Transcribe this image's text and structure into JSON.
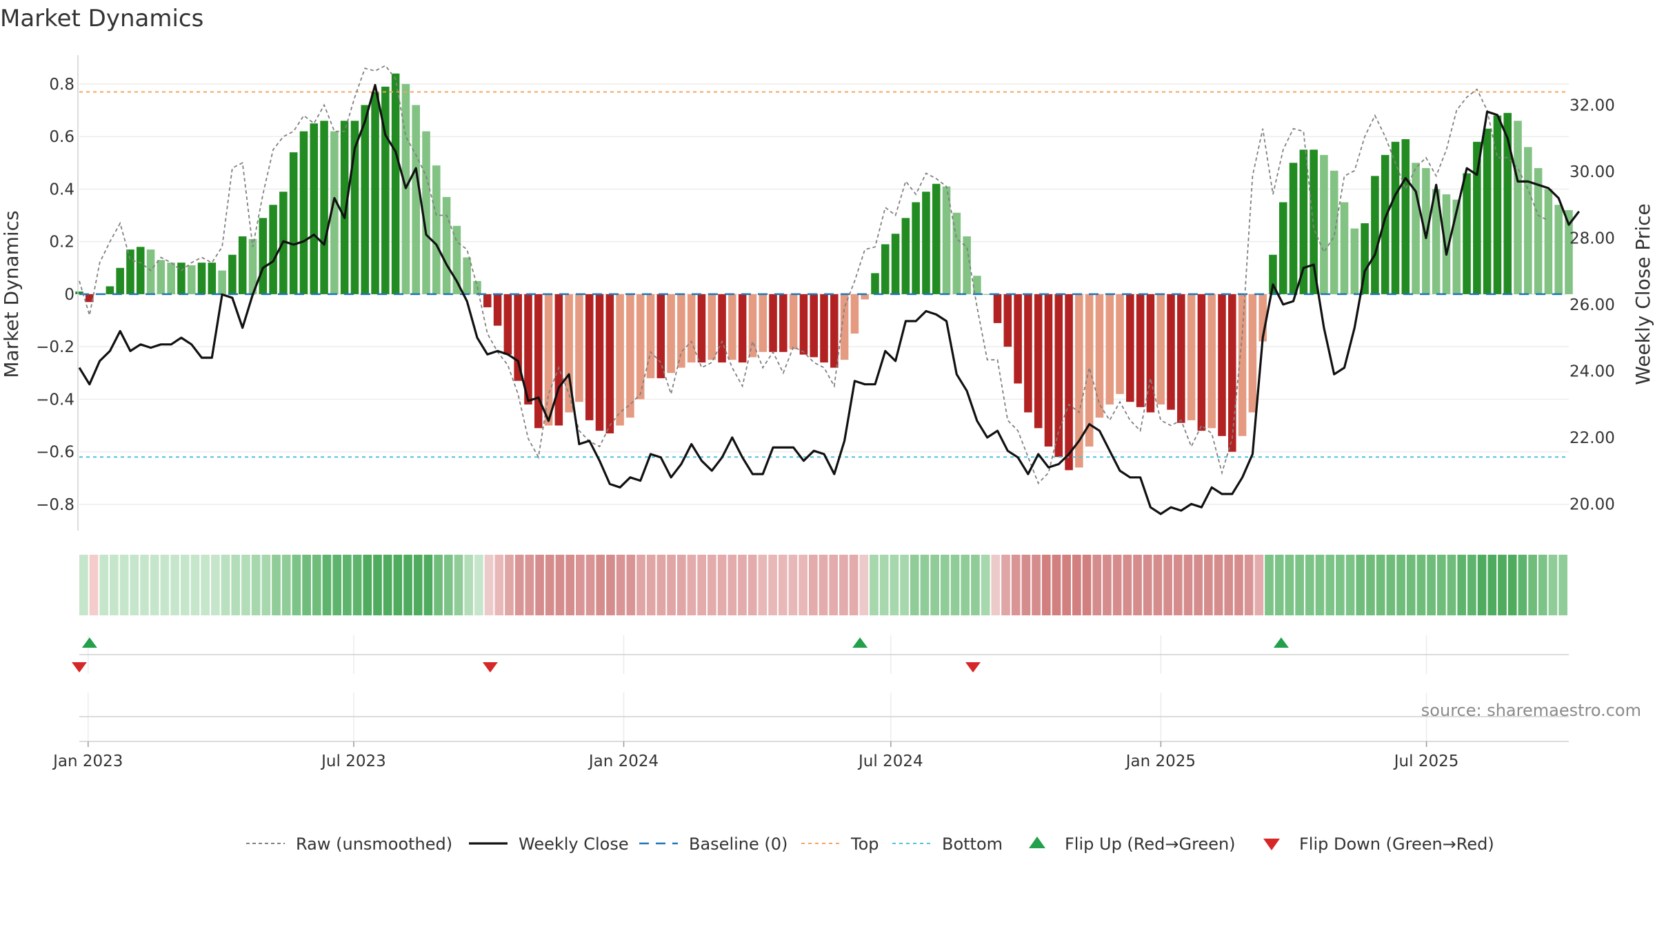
{
  "chart_data": {
    "type": "bar",
    "title": "Market Dynamics",
    "ylabel_left": "Market Dynamics",
    "ylabel_right": "Weekly Close Price",
    "x_start": "2022-12-26",
    "x_end": "2025-10-06",
    "x_ticks": [
      {
        "date": "2023-01-01",
        "label": "Jan 2023"
      },
      {
        "date": "2023-07-01",
        "label": "Jul 2023"
      },
      {
        "date": "2024-01-01",
        "label": "Jan 2024"
      },
      {
        "date": "2024-07-01",
        "label": "Jul 2024"
      },
      {
        "date": "2025-01-01",
        "label": "Jan 2025"
      },
      {
        "date": "2025-07-01",
        "label": "Jul 2025"
      }
    ],
    "ylim_left": [
      -0.9,
      0.91
    ],
    "yticks_left": [
      {
        "value": 0.8,
        "label": "0.8"
      },
      {
        "value": 0.6,
        "label": "0.6"
      },
      {
        "value": 0.4,
        "label": "0.4"
      },
      {
        "value": 0.2,
        "label": "0.2"
      },
      {
        "value": 0,
        "label": "0"
      },
      {
        "value": -0.2,
        "label": "−0.2"
      },
      {
        "value": -0.4,
        "label": "−0.4"
      },
      {
        "value": -0.6,
        "label": "−0.6"
      },
      {
        "value": -0.8,
        "label": "−0.8"
      }
    ],
    "ylim_right": [
      19.2,
      33.5
    ],
    "yticks_right": [
      {
        "value": 32,
        "label": "32.00"
      },
      {
        "value": 30,
        "label": "30.00"
      },
      {
        "value": 28,
        "label": "28.00"
      },
      {
        "value": 26,
        "label": "26.00"
      },
      {
        "value": 24,
        "label": "24.00"
      },
      {
        "value": 22,
        "label": "22.00"
      },
      {
        "value": 20,
        "label": "20.00"
      }
    ],
    "top_level": 0.77,
    "bottom_level": -0.62,
    "baseline": 0,
    "momentum": [
      0.01,
      -0.03,
      0,
      0.03,
      0.1,
      0.17,
      0.18,
      0.17,
      0.13,
      0.12,
      0.12,
      0.11,
      0.12,
      0.12,
      0.09,
      0.15,
      0.22,
      0.21,
      0.29,
      0.34,
      0.39,
      0.54,
      0.62,
      0.65,
      0.66,
      0.62,
      0.66,
      0.66,
      0.72,
      0.77,
      0.79,
      0.84,
      0.8,
      0.72,
      0.62,
      0.49,
      0.37,
      0.26,
      0.14,
      0.05,
      -0.05,
      -0.12,
      -0.23,
      -0.33,
      -0.42,
      -0.51,
      -0.5,
      -0.5,
      -0.45,
      -0.41,
      -0.48,
      -0.52,
      -0.53,
      -0.5,
      -0.47,
      -0.4,
      -0.32,
      -0.32,
      -0.3,
      -0.28,
      -0.26,
      -0.26,
      -0.25,
      -0.26,
      -0.25,
      -0.26,
      -0.24,
      -0.22,
      -0.22,
      -0.22,
      -0.21,
      -0.23,
      -0.24,
      -0.26,
      -0.28,
      -0.25,
      -0.15,
      -0.02,
      0.08,
      0.19,
      0.23,
      0.29,
      0.35,
      0.39,
      0.42,
      0.41,
      0.31,
      0.22,
      0.07,
      0,
      -0.11,
      -0.2,
      -0.34,
      -0.45,
      -0.51,
      -0.58,
      -0.62,
      -0.67,
      -0.66,
      -0.58,
      -0.47,
      -0.42,
      -0.38,
      -0.41,
      -0.43,
      -0.45,
      -0.42,
      -0.44,
      -0.49,
      -0.48,
      -0.52,
      -0.51,
      -0.54,
      -0.6,
      -0.54,
      -0.45,
      -0.18,
      0.15,
      0.35,
      0.5,
      0.55,
      0.55,
      0.53,
      0.47,
      0.35,
      0.25,
      0.27,
      0.45,
      0.53,
      0.58,
      0.59,
      0.5,
      0.48,
      0.4,
      0.38,
      0.36,
      0.46,
      0.58,
      0.63,
      0.68,
      0.69,
      0.66,
      0.56,
      0.48,
      0.4,
      0.34,
      0.32
    ],
    "raw": [
      0.05,
      -0.08,
      0.12,
      0.2,
      0.27,
      0.13,
      0.12,
      0.09,
      0.14,
      0.12,
      0.09,
      0.12,
      0.14,
      0.12,
      0.18,
      0.48,
      0.5,
      0.18,
      0.38,
      0.55,
      0.6,
      0.62,
      0.68,
      0.65,
      0.72,
      0.62,
      0.62,
      0.75,
      0.86,
      0.85,
      0.87,
      0.82,
      0.6,
      0.53,
      0.45,
      0.3,
      0.3,
      0.2,
      0.17,
      0.03,
      -0.15,
      -0.22,
      -0.27,
      -0.38,
      -0.55,
      -0.62,
      -0.38,
      -0.28,
      -0.38,
      -0.52,
      -0.56,
      -0.58,
      -0.5,
      -0.45,
      -0.42,
      -0.38,
      -0.22,
      -0.26,
      -0.38,
      -0.22,
      -0.18,
      -0.28,
      -0.26,
      -0.18,
      -0.28,
      -0.35,
      -0.18,
      -0.28,
      -0.22,
      -0.3,
      -0.2,
      -0.22,
      -0.26,
      -0.28,
      -0.35,
      -0.05,
      0.05,
      0.17,
      0.18,
      0.33,
      0.3,
      0.43,
      0.38,
      0.46,
      0.44,
      0.41,
      0.21,
      0.18,
      -0.05,
      -0.25,
      -0.25,
      -0.48,
      -0.52,
      -0.62,
      -0.72,
      -0.68,
      -0.52,
      -0.42,
      -0.45,
      -0.28,
      -0.42,
      -0.48,
      -0.41,
      -0.48,
      -0.52,
      -0.32,
      -0.48,
      -0.5,
      -0.48,
      -0.58,
      -0.5,
      -0.53,
      -0.68,
      -0.55,
      -0.15,
      0.45,
      0.63,
      0.38,
      0.55,
      0.63,
      0.62,
      0.25,
      0.16,
      0.22,
      0.45,
      0.47,
      0.6,
      0.68,
      0.6,
      0.5,
      0.4,
      0.48,
      0.52,
      0.45,
      0.55,
      0.7,
      0.75,
      0.78,
      0.7,
      0.52,
      0.52,
      0.48,
      0.4,
      0.3,
      0.28
    ],
    "weekly_close": [
      24.1,
      23.6,
      24.3,
      24.6,
      25.2,
      24.6,
      24.8,
      24.7,
      24.8,
      24.8,
      25.0,
      24.8,
      24.4,
      24.4,
      26.3,
      26.2,
      25.3,
      26.3,
      27.1,
      27.3,
      27.9,
      27.8,
      27.9,
      28.1,
      27.8,
      29.2,
      28.6,
      30.7,
      31.5,
      32.6,
      31.1,
      30.6,
      29.5,
      30.1,
      28.1,
      27.8,
      27.2,
      26.7,
      26.1,
      25.0,
      24.5,
      24.6,
      24.5,
      24.3,
      23.1,
      23.2,
      22.5,
      23.5,
      23.9,
      21.8,
      21.9,
      21.3,
      20.6,
      20.5,
      20.8,
      20.7,
      21.5,
      21.4,
      20.8,
      21.2,
      21.8,
      21.3,
      21.0,
      21.4,
      22.0,
      21.4,
      20.9,
      20.9,
      21.7,
      21.7,
      21.7,
      21.3,
      21.6,
      21.5,
      20.9,
      21.9,
      23.7,
      23.6,
      23.6,
      24.6,
      24.3,
      25.5,
      25.5,
      25.8,
      25.7,
      25.5,
      23.9,
      23.4,
      22.5,
      22.0,
      22.2,
      21.6,
      21.4,
      20.9,
      21.5,
      21.1,
      21.2,
      21.5,
      21.9,
      22.4,
      22.2,
      21.6,
      21.0,
      20.8,
      20.8,
      19.9,
      19.7,
      19.9,
      19.8,
      20.0,
      19.9,
      20.5,
      20.3,
      20.3,
      20.8,
      21.5,
      25.0,
      26.6,
      26.0,
      26.1,
      27.1,
      27.2,
      25.3,
      23.9,
      24.1,
      25.3,
      27.0,
      27.5,
      28.6,
      29.3,
      29.8,
      29.4,
      28.0,
      29.6,
      27.5,
      28.8,
      30.1,
      29.9,
      31.8,
      31.7,
      31.0,
      29.7,
      29.7,
      29.6,
      29.5,
      29.2,
      28.4,
      28.8
    ],
    "strip_colors": [
      "#c6e6cb",
      "#f5cccc",
      "#c6e6cb",
      "#c6e6cb",
      "#c6e6cb",
      "#c6e6cb",
      "#c6e6cb",
      "#c6e6cb",
      "#c6e6cb",
      "#c6e6cb",
      "#c6e6cb",
      "#c6e6cb",
      "#c6e6cb",
      "#c6e6cb",
      "#b9e0bf",
      "#b3ddb9",
      "#b3ddb9",
      "#a6d7ad",
      "#a6d7ad",
      "#8fcc98",
      "#8fcc98",
      "#7cc388",
      "#6fbc7b",
      "#6fbc7b",
      "#5fb46d",
      "#5fb46d",
      "#5fb46d",
      "#5fb46d",
      "#4fab5e",
      "#4fab5e",
      "#4fab5e",
      "#4fab5e",
      "#4fab5e",
      "#4fab5e",
      "#4fab5e",
      "#6fbc7b",
      "#7cc388",
      "#8fcc98",
      "#b3ddb9",
      "#c6e6cb",
      "#edcaca",
      "#e8b8b8",
      "#e0a5a5",
      "#d99595",
      "#d99595",
      "#d58c8c",
      "#d58c8c",
      "#d58c8c",
      "#d58c8c",
      "#d99595",
      "#d99595",
      "#d58c8c",
      "#d58c8c",
      "#d99595",
      "#d99595",
      "#e0a5a5",
      "#e0a5a5",
      "#e0a5a5",
      "#e0a5a5",
      "#e0a5a5",
      "#e3abab",
      "#e3abab",
      "#e3abab",
      "#e3abab",
      "#e3abab",
      "#e3abab",
      "#e3abab",
      "#e8b8b8",
      "#e8b8b8",
      "#e8b8b8",
      "#e8b8b8",
      "#e8b8b8",
      "#e3abab",
      "#e3abab",
      "#e3abab",
      "#e3abab",
      "#e3abab",
      "#edcaca",
      "#a6d7ad",
      "#a6d7ad",
      "#a6d7ad",
      "#a6d7ad",
      "#8fcc98",
      "#8fcc98",
      "#8fcc98",
      "#8fcc98",
      "#8fcc98",
      "#8fcc98",
      "#8fcc98",
      "#a6d7ad",
      "#edcaca",
      "#e0a5a5",
      "#d99595",
      "#d58c8c",
      "#d58c8c",
      "#d17f7f",
      "#d17f7f",
      "#d17f7f",
      "#d17f7f",
      "#d17f7f",
      "#d58c8c",
      "#d58c8c",
      "#d58c8c",
      "#d58c8c",
      "#d58c8c",
      "#d58c8c",
      "#d58c8c",
      "#d58c8c",
      "#d58c8c",
      "#d58c8c",
      "#d58c8c",
      "#d58c8c",
      "#d58c8c",
      "#d58c8c",
      "#d58c8c",
      "#d99595",
      "#e3abab",
      "#7cc388",
      "#7cc388",
      "#7cc388",
      "#7cc388",
      "#7cc388",
      "#7cc388",
      "#7cc388",
      "#7cc388",
      "#7cc388",
      "#6fbc7b",
      "#6fbc7b",
      "#6fbc7b",
      "#6fbc7b",
      "#6fbc7b",
      "#6fbc7b",
      "#6fbc7b",
      "#6fbc7b",
      "#6fbc7b",
      "#6fbc7b",
      "#5fb46d",
      "#5fb46d",
      "#4fab5e",
      "#4fab5e",
      "#4fab5e",
      "#4fab5e",
      "#5fb46d",
      "#6fbc7b",
      "#7cc388",
      "#8fcc98",
      "#8fcc98"
    ],
    "flip_up": [
      "2023-01-02",
      "2024-06-10",
      "2025-03-24"
    ],
    "flip_down": [
      "2022-12-26",
      "2023-10-02",
      "2024-08-26"
    ],
    "colors": {
      "green_strong": "#228b22",
      "green_light": "#82c283",
      "red_strong": "#b22222",
      "red_light": "#e49b81",
      "raw_line": "#808080",
      "close_line": "#111111",
      "baseline": "#1f77b4",
      "top": "#f4a460",
      "bottom": "#4fc3d9",
      "flip_up": "#22a04b",
      "flip_down": "#d62728"
    },
    "legend": [
      {
        "key": "raw",
        "label": "Raw (unsmoothed)"
      },
      {
        "key": "close",
        "label": "Weekly Close"
      },
      {
        "key": "baseline",
        "label": "Baseline (0)"
      },
      {
        "key": "top",
        "label": "Top"
      },
      {
        "key": "bottom",
        "label": "Bottom"
      },
      {
        "key": "flip_up",
        "label": "Flip Up (Red→Green)"
      },
      {
        "key": "flip_down",
        "label": "Flip Down (Green→Red)"
      }
    ],
    "source": "source: sharemaestro.com"
  }
}
